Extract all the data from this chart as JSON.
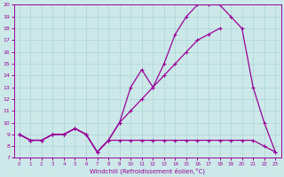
{
  "xlabel": "Windchill (Refroidissement éolien,°C)",
  "bg_color": "#cce8e8",
  "grid_color": "#aacccc",
  "line_color": "#990099",
  "xlim": [
    -0.5,
    23.5
  ],
  "ylim": [
    7,
    20
  ],
  "xticks": [
    0,
    1,
    2,
    3,
    4,
    5,
    6,
    7,
    8,
    9,
    10,
    11,
    12,
    13,
    14,
    15,
    16,
    17,
    18,
    19,
    20,
    21,
    22,
    23
  ],
  "yticks": [
    7,
    8,
    9,
    10,
    11,
    12,
    13,
    14,
    15,
    16,
    17,
    18,
    19,
    20
  ],
  "line1_x": [
    0,
    1,
    2,
    3,
    4,
    5,
    6,
    7,
    8,
    9,
    10,
    11,
    12,
    13,
    14,
    15,
    16,
    17,
    18,
    19,
    20,
    21,
    22,
    23
  ],
  "line1_y": [
    9,
    8.5,
    8.5,
    9.0,
    9.0,
    9.5,
    9.0,
    7.5,
    8.5,
    8.5,
    8.5,
    8.5,
    8.5,
    8.5,
    8.5,
    8.5,
    8.5,
    8.5,
    8.5,
    8.5,
    8.5,
    8.5,
    8.0,
    7.5
  ],
  "line2_x": [
    0,
    1,
    2,
    3,
    4,
    5,
    6,
    7,
    8,
    9,
    10,
    11,
    12,
    13,
    14,
    15,
    16,
    17,
    18,
    19,
    20,
    21,
    22,
    23
  ],
  "line2_y": [
    9,
    8.5,
    8.5,
    9.0,
    9.0,
    9.5,
    9.0,
    7.5,
    8.5,
    10.0,
    13.0,
    14.5,
    13.0,
    15.0,
    17.5,
    19.0,
    20.0,
    20.0,
    20.0,
    19.0,
    18.0,
    13.0,
    10.0,
    7.5
  ],
  "line3_x": [
    0,
    1,
    2,
    3,
    4,
    5,
    6,
    7,
    8,
    9,
    10,
    11,
    12,
    13,
    14,
    15,
    16,
    17,
    18
  ],
  "line3_y": [
    9,
    8.5,
    8.5,
    9.0,
    9.0,
    9.5,
    9.0,
    7.5,
    8.5,
    10.0,
    11.0,
    12.0,
    13.0,
    14.0,
    15.0,
    16.0,
    17.0,
    17.5,
    18.0
  ]
}
